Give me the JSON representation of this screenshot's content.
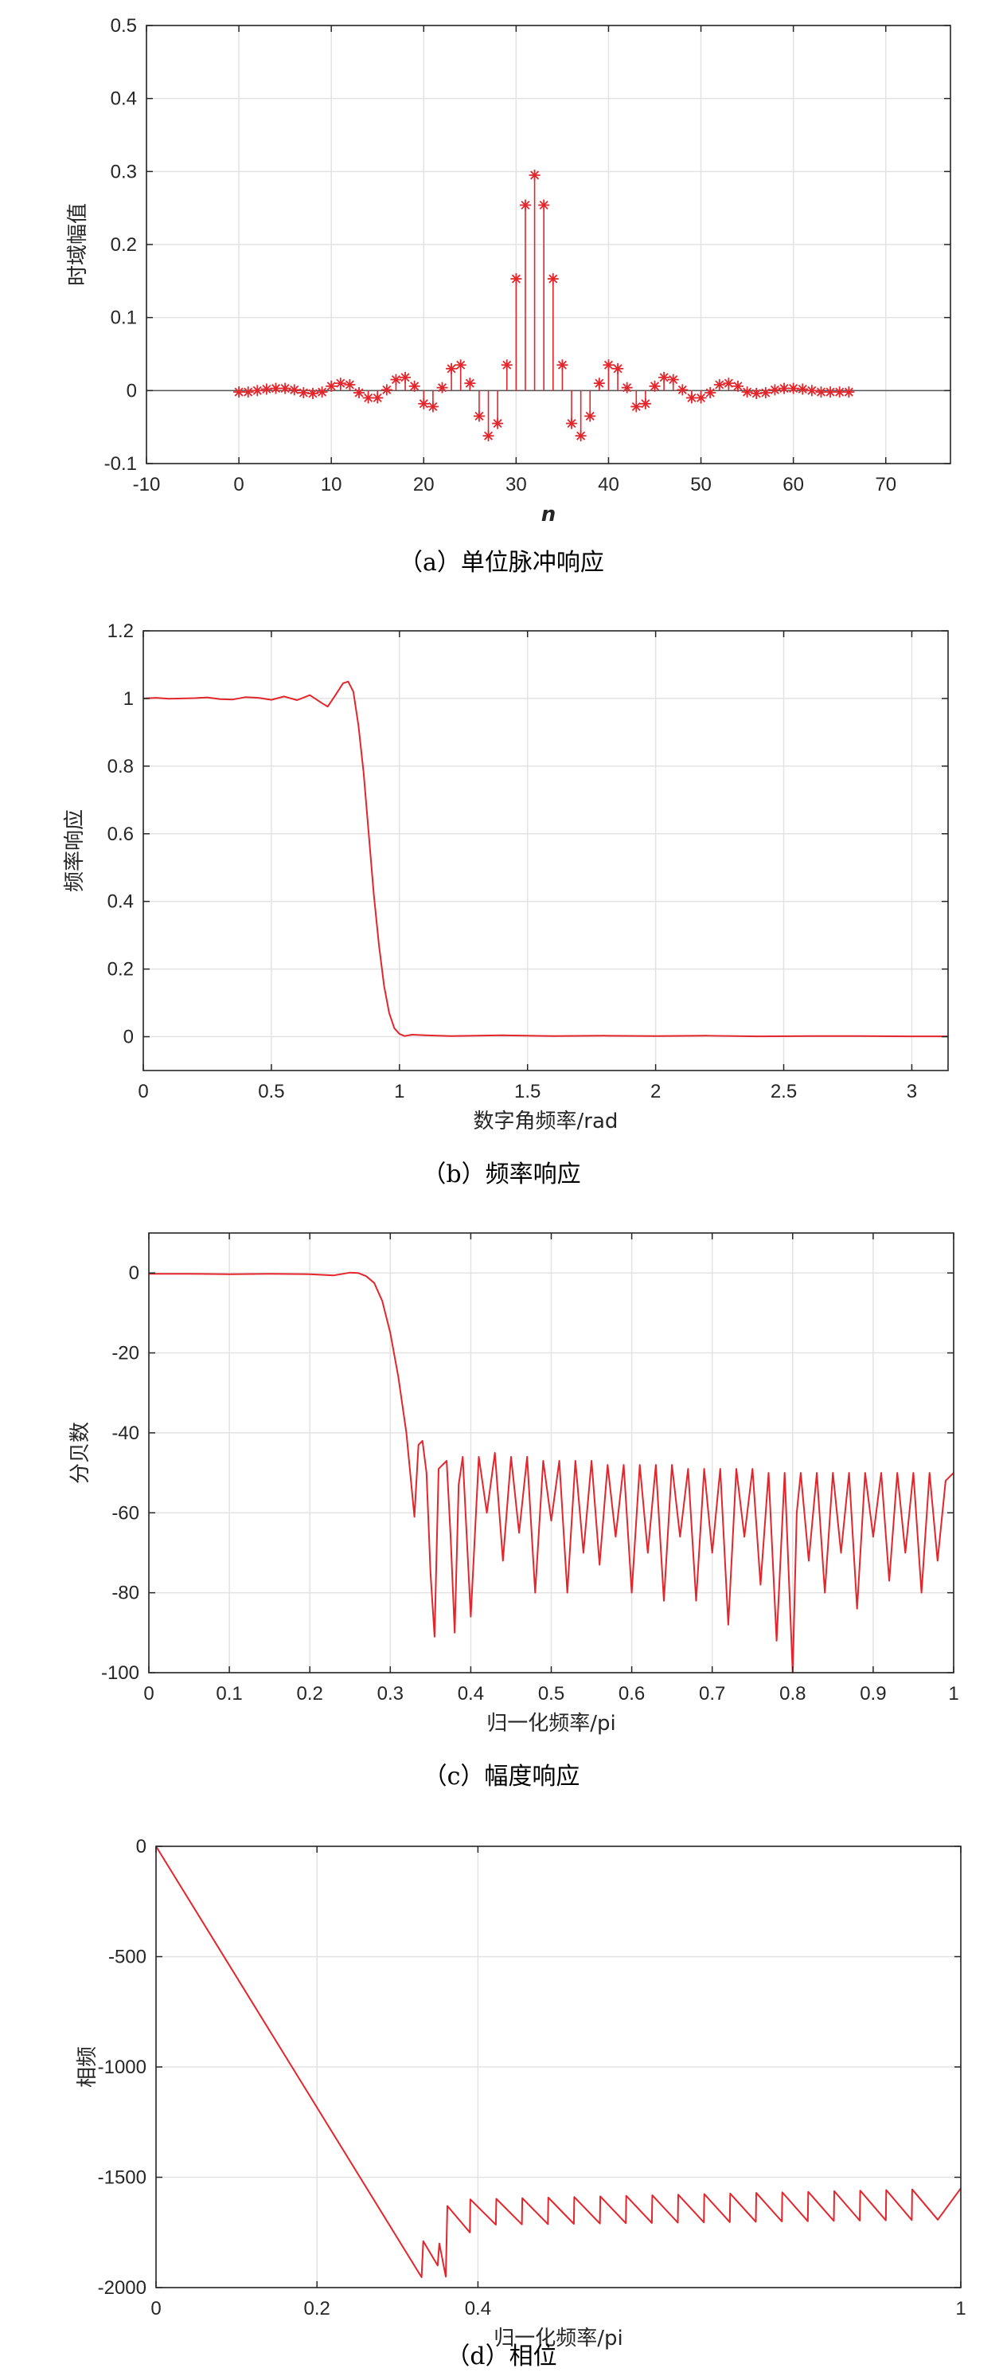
{
  "colors": {
    "series": "#e3262c",
    "axis": "#262626",
    "grid": "#e3e3e3",
    "background": "#ffffff"
  },
  "chart_data": [
    {
      "type": "stem",
      "caption": "（a）单位脉冲响应",
      "xlabel": "n",
      "ylabel": "时域幅值",
      "xlim": [
        -10,
        77
      ],
      "ylim": [
        -0.1,
        0.5
      ],
      "xticks": [
        -10,
        0,
        10,
        20,
        30,
        40,
        50,
        60,
        70
      ],
      "xtick_labels": [
        "-10",
        "0",
        "10",
        "20",
        "30",
        "40",
        "50",
        "60",
        "70"
      ],
      "yticks": [
        -0.1,
        0,
        0.1,
        0.2,
        0.3,
        0.4,
        0.5
      ],
      "ytick_labels": [
        "-0.1",
        "0",
        "0.1",
        "0.2",
        "0.3",
        "0.4",
        "0.5"
      ],
      "grid": true,
      "marker": "*",
      "x": [
        0,
        1,
        2,
        3,
        4,
        5,
        6,
        7,
        8,
        9,
        10,
        11,
        12,
        13,
        14,
        15,
        16,
        17,
        18,
        19,
        20,
        21,
        22,
        23,
        24,
        25,
        26,
        27,
        28,
        29,
        30,
        31,
        32,
        33,
        34,
        35,
        36,
        37,
        38,
        39,
        40,
        41,
        42,
        43,
        44,
        45,
        46,
        47,
        48,
        49,
        50,
        51,
        52,
        53,
        54,
        55,
        56,
        57,
        58,
        59,
        60,
        61,
        62,
        63,
        64,
        65,
        66
      ],
      "y": [
        -0.002,
        -0.002,
        0,
        0.002,
        0.003,
        0.003,
        0.001,
        -0.003,
        -0.004,
        -0.002,
        0.006,
        0.01,
        0.008,
        -0.003,
        -0.01,
        -0.01,
        0.001,
        0.015,
        0.018,
        0.006,
        -0.018,
        -0.022,
        0.004,
        0.03,
        0.035,
        0.01,
        -0.035,
        -0.062,
        -0.045,
        0.035,
        0.153,
        0.254,
        0.295,
        0.254,
        0.153,
        0.035,
        -0.045,
        -0.062,
        -0.035,
        0.01,
        0.035,
        0.03,
        0.004,
        -0.022,
        -0.018,
        0.006,
        0.018,
        0.015,
        0.001,
        -0.01,
        -0.01,
        -0.003,
        0.008,
        0.01,
        0.006,
        -0.002,
        -0.004,
        -0.003,
        0.001,
        0.003,
        0.003,
        0.002,
        0,
        -0.002,
        -0.002,
        -0.002,
        -0.002
      ]
    },
    {
      "type": "line",
      "caption": "（b）频率响应",
      "xlabel": "数字角频率/rad",
      "ylabel": "频率响应",
      "xlim": [
        0,
        3.1416
      ],
      "ylim": [
        -0.1,
        1.2
      ],
      "xticks": [
        0,
        0.5,
        1,
        1.5,
        2,
        2.5,
        3
      ],
      "xtick_labels": [
        "0",
        "0.5",
        "1",
        "1.5",
        "2",
        "2.5",
        "3"
      ],
      "yticks": [
        0,
        0.2,
        0.4,
        0.6,
        0.8,
        1,
        1.2
      ],
      "ytick_labels": [
        "0",
        "0.2",
        "0.4",
        "0.6",
        "0.8",
        "1",
        "1.2"
      ],
      "grid": true,
      "x": [
        0,
        0.05,
        0.1,
        0.15,
        0.2,
        0.25,
        0.3,
        0.35,
        0.4,
        0.45,
        0.5,
        0.55,
        0.6,
        0.65,
        0.7,
        0.72,
        0.75,
        0.78,
        0.8,
        0.82,
        0.84,
        0.86,
        0.88,
        0.9,
        0.92,
        0.94,
        0.96,
        0.98,
        1.0,
        1.02,
        1.05,
        1.1,
        1.2,
        1.4,
        1.6,
        1.8,
        2.0,
        2.2,
        2.4,
        2.6,
        2.8,
        3.0,
        3.1416
      ],
      "y": [
        1.0,
        1.002,
        0.999,
        1.0,
        1.001,
        1.003,
        0.998,
        0.997,
        1.004,
        1.002,
        0.996,
        1.006,
        0.995,
        1.01,
        0.985,
        0.976,
        1.01,
        1.045,
        1.05,
        1.02,
        0.92,
        0.78,
        0.6,
        0.42,
        0.27,
        0.15,
        0.07,
        0.025,
        0.008,
        0.002,
        0.006,
        0.004,
        0.002,
        0.004,
        0.002,
        0.003,
        0.002,
        0.003,
        0.001,
        0.002,
        0.002,
        0.001,
        0.001
      ]
    },
    {
      "type": "line",
      "caption": "（c）幅度响应",
      "xlabel": "归一化频率/pi",
      "ylabel": "分贝数",
      "xlim": [
        0,
        1
      ],
      "ylim": [
        -100,
        10
      ],
      "xticks": [
        0,
        0.1,
        0.2,
        0.3,
        0.4,
        0.5,
        0.6,
        0.7,
        0.8,
        0.9,
        1
      ],
      "xtick_labels": [
        "0",
        "0.1",
        "0.2",
        "0.3",
        "0.4",
        "0.5",
        "0.6",
        "0.7",
        "0.8",
        "0.9",
        "1"
      ],
      "yticks": [
        -100,
        -80,
        -60,
        -40,
        -20,
        0
      ],
      "ytick_labels": [
        "-100",
        "-80",
        "-60",
        "-40",
        "-20",
        "0"
      ],
      "grid": true,
      "x": [
        0,
        0.05,
        0.1,
        0.15,
        0.2,
        0.23,
        0.25,
        0.26,
        0.27,
        0.28,
        0.29,
        0.3,
        0.31,
        0.32,
        0.33,
        0.335,
        0.34,
        0.345,
        0.35,
        0.355,
        0.36,
        0.37,
        0.375,
        0.38,
        0.385,
        0.39,
        0.4,
        0.41,
        0.42,
        0.43,
        0.44,
        0.45,
        0.46,
        0.47,
        0.48,
        0.49,
        0.5,
        0.51,
        0.52,
        0.53,
        0.54,
        0.55,
        0.56,
        0.57,
        0.58,
        0.59,
        0.6,
        0.61,
        0.62,
        0.63,
        0.64,
        0.65,
        0.66,
        0.67,
        0.68,
        0.69,
        0.7,
        0.71,
        0.72,
        0.73,
        0.74,
        0.75,
        0.76,
        0.77,
        0.78,
        0.79,
        0.8,
        0.805,
        0.81,
        0.82,
        0.83,
        0.84,
        0.85,
        0.86,
        0.87,
        0.88,
        0.89,
        0.9,
        0.91,
        0.92,
        0.93,
        0.94,
        0.95,
        0.96,
        0.97,
        0.98,
        0.99,
        1.0
      ],
      "y": [
        -0.2,
        -0.2,
        -0.3,
        -0.2,
        -0.3,
        -0.6,
        0.1,
        0.0,
        -0.8,
        -2.5,
        -7,
        -15,
        -26,
        -40,
        -61,
        -43,
        -42,
        -50,
        -75,
        -91,
        -49,
        -47,
        -66,
        -90,
        -53,
        -46,
        -86,
        -46,
        -60,
        -45,
        -72,
        -46,
        -65,
        -46,
        -80,
        -47,
        -62,
        -47,
        -80,
        -47,
        -70,
        -47,
        -73,
        -48,
        -66,
        -48,
        -80,
        -48,
        -70,
        -48,
        -82,
        -48,
        -66,
        -49,
        -82,
        -49,
        -70,
        -49,
        -88,
        -49,
        -66,
        -49,
        -78,
        -50,
        -92,
        -50,
        -100,
        -60,
        -50,
        -72,
        -50,
        -80,
        -50,
        -70,
        -50,
        -84,
        -50,
        -66,
        -50,
        -77,
        -50,
        -70,
        -50,
        -80,
        -50,
        -72,
        -52,
        -50
      ]
    },
    {
      "type": "line",
      "caption": "（d）相位",
      "xlabel": "归一化频率/pi",
      "ylabel": "相频",
      "xlim": [
        0,
        1
      ],
      "ylim": [
        -2000,
        0
      ],
      "xticks": [
        0,
        0.2,
        0.4,
        1
      ],
      "xtick_labels": [
        "0",
        "0.2",
        "0.4",
        "1"
      ],
      "yticks": [
        -2000,
        -1500,
        -1000,
        -500,
        0
      ],
      "ytick_labels": [
        "-2000",
        "-1500",
        "-1000",
        "-500",
        "0"
      ],
      "grid": true,
      "x": [
        0,
        0.33,
        0.332,
        0.35,
        0.352,
        0.36,
        0.362,
        0.39
      ],
      "y": [
        0,
        -1953,
        -1790,
        -1900,
        -1800,
        -1950,
        -1630,
        -1750
      ],
      "sawtooth": {
        "x_start": 0.39,
        "x_end": 1.0,
        "period": 0.0323,
        "high": -1600,
        "low": -1715,
        "high_end": -1550
      }
    }
  ]
}
